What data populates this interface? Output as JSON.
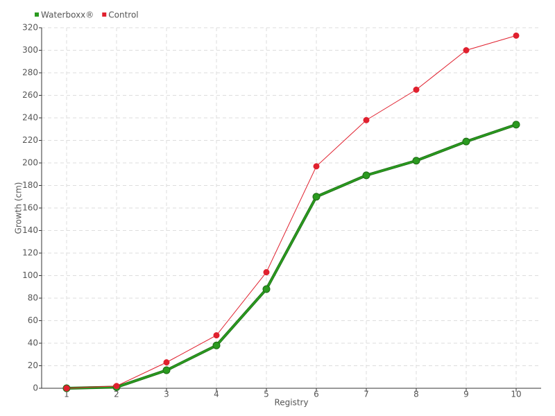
{
  "chart_data": {
    "type": "line",
    "x_label": "Registry",
    "y_label": "Growth (cm)",
    "categories": [
      "1",
      "2",
      "3",
      "4",
      "5",
      "6",
      "7",
      "8",
      "9",
      "10"
    ],
    "series": [
      {
        "name": "Waterboxx®",
        "color": "#2a9a1f",
        "values": [
          0,
          1,
          16,
          38,
          88,
          170,
          189,
          202,
          219,
          234
        ]
      },
      {
        "name": "Control",
        "color": "#e0202e",
        "values": [
          0,
          2,
          23,
          47,
          103,
          197,
          238,
          265,
          300,
          313
        ]
      }
    ],
    "ylim": [
      0,
      320
    ],
    "yticks": [
      0,
      20,
      40,
      60,
      80,
      100,
      120,
      140,
      160,
      180,
      200,
      220,
      240,
      260,
      280,
      300,
      320
    ],
    "grid": true,
    "legend": "top-left"
  }
}
